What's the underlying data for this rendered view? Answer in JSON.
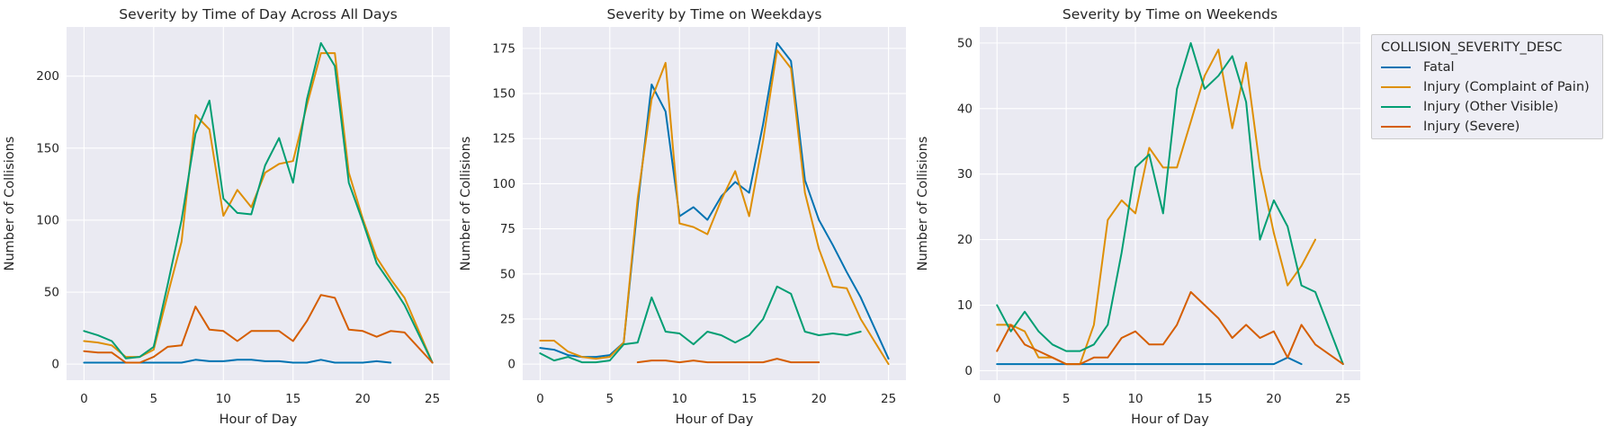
{
  "figure": {
    "bg": "#ffffff",
    "axes_bg": "#eaeaf2",
    "grid_color": "#ffffff",
    "text_color": "#262626",
    "legend_bg": "#eeeef5",
    "legend_border": "#cccccc"
  },
  "legend": {
    "title": "COLLISION_SEVERITY_DESC",
    "items": [
      {
        "label": "Fatal",
        "color": "#0173b2"
      },
      {
        "label": "Injury (Complaint of Pain)",
        "color": "#de8f05"
      },
      {
        "label": "Injury (Other Visible)",
        "color": "#029e73"
      },
      {
        "label": "Injury (Severe)",
        "color": "#d55e00"
      }
    ]
  },
  "chart_data": [
    {
      "type": "line",
      "title": "Severity by Time of Day Across All Days",
      "xlabel": "Hour of Day",
      "ylabel": "Number of Collisions",
      "xticks": [
        0,
        5,
        10,
        15,
        20,
        25
      ],
      "yticks": [
        0,
        50,
        100,
        150,
        200
      ],
      "xlim": [
        -1.25,
        26.25
      ],
      "ylim": [
        -11.15,
        234.15
      ],
      "grid": true,
      "series": [
        {
          "name": "Fatal",
          "color": "#0173b2",
          "x": [
            0,
            1,
            2,
            3,
            4,
            5,
            6,
            7,
            8,
            9,
            10,
            11,
            12,
            13,
            14,
            15,
            16,
            17,
            18,
            19,
            20,
            21,
            22
          ],
          "y": [
            1,
            1,
            1,
            1,
            1,
            1,
            1,
            1,
            3,
            2,
            2,
            3,
            3,
            2,
            2,
            1,
            1,
            3,
            1,
            1,
            1,
            2,
            1
          ]
        },
        {
          "name": "Injury (Complaint of Pain)",
          "color": "#de8f05",
          "x": [
            0,
            1,
            2,
            3,
            4,
            5,
            6,
            7,
            8,
            9,
            10,
            11,
            12,
            13,
            14,
            15,
            16,
            17,
            18,
            19,
            20,
            21,
            22,
            23,
            25
          ],
          "y": [
            16,
            15,
            13,
            5,
            5,
            10,
            48,
            85,
            173,
            163,
            103,
            121,
            109,
            133,
            139,
            141,
            180,
            216,
            216,
            133,
            101,
            74,
            59,
            46,
            1
          ]
        },
        {
          "name": "Injury (Other Visible)",
          "color": "#029e73",
          "x": [
            0,
            1,
            2,
            3,
            4,
            5,
            6,
            7,
            8,
            9,
            10,
            11,
            12,
            13,
            14,
            15,
            16,
            17,
            18,
            19,
            20,
            21,
            22,
            23,
            25
          ],
          "y": [
            23,
            20,
            16,
            4,
            5,
            12,
            55,
            100,
            160,
            183,
            115,
            105,
            104,
            138,
            157,
            126,
            184,
            223,
            207,
            126,
            99,
            70,
            56,
            41,
            1
          ]
        },
        {
          "name": "Injury (Severe)",
          "color": "#d55e00",
          "x": [
            0,
            1,
            2,
            3,
            4,
            5,
            6,
            7,
            8,
            9,
            10,
            11,
            12,
            13,
            14,
            15,
            16,
            17,
            18,
            19,
            20,
            21,
            22,
            23,
            25
          ],
          "y": [
            9,
            8,
            8,
            1,
            1,
            5,
            12,
            13,
            40,
            24,
            23,
            16,
            23,
            23,
            23,
            16,
            30,
            48,
            46,
            24,
            23,
            19,
            23,
            22,
            1
          ]
        }
      ]
    },
    {
      "type": "line",
      "title": "Severity by Time on Weekdays",
      "xlabel": "Hour of Day",
      "ylabel": "Number of Collisions",
      "xticks": [
        0,
        5,
        10,
        15,
        20,
        25
      ],
      "yticks": [
        0,
        25,
        50,
        75,
        100,
        125,
        150,
        175
      ],
      "xlim": [
        -1.25,
        26.25
      ],
      "ylim": [
        -8.9,
        186.9
      ],
      "grid": true,
      "series": [
        {
          "name": "Fatal",
          "color": "#0173b2",
          "x": [
            0,
            1,
            2,
            3,
            4,
            5,
            6,
            7,
            8,
            9,
            10,
            11,
            12,
            13,
            14,
            15,
            16,
            17,
            18,
            19,
            20,
            21,
            22,
            23,
            25
          ],
          "y": [
            9,
            8,
            5,
            4,
            4,
            5,
            12,
            88,
            155,
            140,
            82,
            87,
            80,
            93,
            101,
            95,
            133,
            178,
            168,
            102,
            80,
            66,
            51,
            37,
            3
          ]
        },
        {
          "name": "Injury (Complaint of Pain)",
          "color": "#de8f05",
          "x": [
            0,
            1,
            2,
            3,
            4,
            5,
            6,
            7,
            8,
            9,
            10,
            11,
            12,
            13,
            14,
            15,
            16,
            17,
            18,
            19,
            20,
            21,
            22,
            23,
            25
          ],
          "y": [
            13,
            13,
            7,
            4,
            3,
            4,
            12,
            92,
            147,
            167,
            78,
            76,
            72,
            91,
            107,
            82,
            124,
            174,
            164,
            95,
            64,
            43,
            42,
            25,
            0
          ]
        },
        {
          "name": "Injury (Other Visible)",
          "color": "#029e73",
          "x": [
            0,
            1,
            2,
            3,
            4,
            5,
            6,
            7,
            8,
            9,
            10,
            11,
            12,
            13,
            14,
            15,
            16,
            17,
            18,
            19,
            20,
            21,
            22,
            23
          ],
          "y": [
            6,
            2,
            4,
            1,
            1,
            2,
            11,
            12,
            37,
            18,
            17,
            11,
            18,
            16,
            12,
            16,
            25,
            43,
            39,
            18,
            16,
            17,
            16,
            18
          ]
        },
        {
          "name": "Injury (Severe)",
          "color": "#d55e00",
          "x": [
            7,
            8,
            9,
            10,
            11,
            12,
            13,
            14,
            15,
            16,
            17,
            18,
            19,
            20
          ],
          "y": [
            1,
            2,
            2,
            1,
            2,
            1,
            1,
            1,
            1,
            1,
            3,
            1,
            1,
            1
          ]
        }
      ]
    },
    {
      "type": "line",
      "title": "Severity by Time on Weekends",
      "xlabel": "Hour of Day",
      "ylabel": "Number of Collisions",
      "xticks": [
        0,
        5,
        10,
        15,
        20,
        25
      ],
      "yticks": [
        0,
        10,
        20,
        30,
        40,
        50
      ],
      "xlim": [
        -1.25,
        26.25
      ],
      "ylim": [
        -1.45,
        52.45
      ],
      "grid": true,
      "series": [
        {
          "name": "Fatal",
          "color": "#0173b2",
          "x": [
            0,
            1,
            2,
            3,
            4,
            5,
            6,
            7,
            8,
            9,
            10,
            11,
            12,
            13,
            14,
            15,
            16,
            17,
            18,
            19,
            20,
            21,
            22
          ],
          "y": [
            1,
            1,
            1,
            1,
            1,
            1,
            1,
            1,
            1,
            1,
            1,
            1,
            1,
            1,
            1,
            1,
            1,
            1,
            1,
            1,
            1,
            2,
            1
          ]
        },
        {
          "name": "Injury (Complaint of Pain)",
          "color": "#de8f05",
          "x": [
            0,
            1,
            2,
            3,
            4,
            5,
            6,
            7,
            8,
            9,
            10,
            11,
            12,
            13,
            14,
            15,
            16,
            17,
            18,
            19,
            20,
            21,
            22,
            23
          ],
          "y": [
            7,
            7,
            6,
            2,
            2,
            1,
            1,
            7,
            23,
            26,
            24,
            34,
            31,
            31,
            38,
            45,
            49,
            37,
            47,
            31,
            21,
            13,
            16,
            20
          ]
        },
        {
          "name": "Injury (Other Visible)",
          "color": "#029e73",
          "x": [
            0,
            1,
            2,
            3,
            4,
            5,
            6,
            7,
            8,
            9,
            10,
            11,
            12,
            13,
            14,
            15,
            16,
            17,
            18,
            19,
            20,
            21,
            22,
            23,
            25
          ],
          "y": [
            10,
            6,
            9,
            6,
            4,
            3,
            3,
            4,
            7,
            18,
            31,
            33,
            24,
            43,
            50,
            43,
            45,
            48,
            41,
            20,
            26,
            22,
            13,
            12,
            1
          ]
        },
        {
          "name": "Injury (Severe)",
          "color": "#d55e00",
          "x": [
            0,
            1,
            2,
            3,
            4,
            5,
            6,
            7,
            8,
            9,
            10,
            11,
            12,
            13,
            14,
            15,
            16,
            17,
            18,
            19,
            20,
            21,
            22,
            23,
            25
          ],
          "y": [
            3,
            7,
            4,
            3,
            2,
            1,
            1,
            2,
            2,
            5,
            6,
            4,
            4,
            7,
            12,
            10,
            8,
            5,
            7,
            5,
            6,
            2,
            7,
            4,
            1
          ]
        }
      ]
    }
  ]
}
